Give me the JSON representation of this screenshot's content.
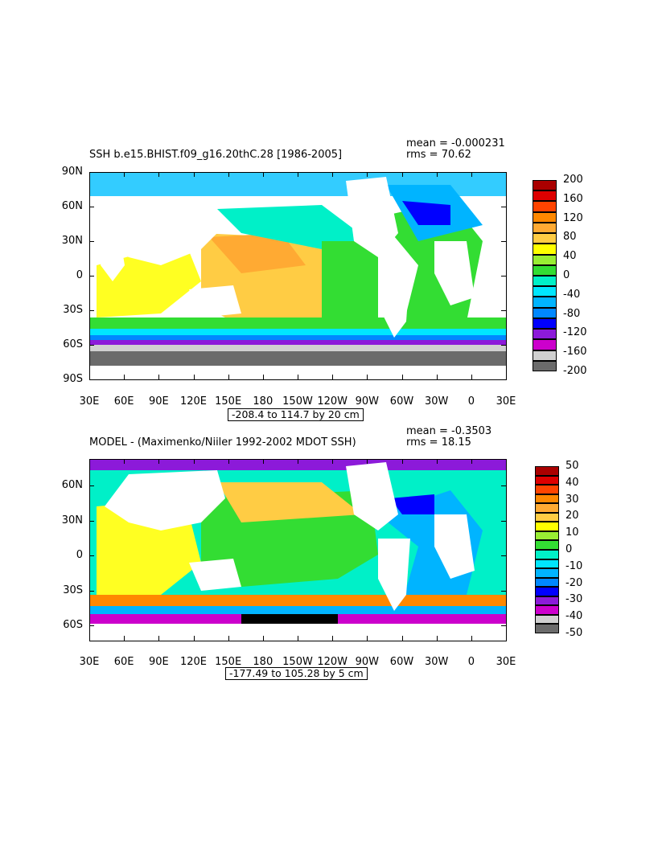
{
  "colors": {
    "bar1": [
      "#6b6b6b",
      "#d0d0d0",
      "#cc00cc",
      "#8c1ad9",
      "#0000ff",
      "#0088ff",
      "#00b4ff",
      "#00e6ff",
      "#00f0c8",
      "#33dd33",
      "#99ee33",
      "#ffff00",
      "#ffcc44",
      "#ffaa33",
      "#ff8800",
      "#ff4400",
      "#dd0000",
      "#aa0000"
    ],
    "bar2": [
      "#6b6b6b",
      "#d0d0d0",
      "#cc00cc",
      "#8c1ad9",
      "#0000ff",
      "#0088ff",
      "#00b4ff",
      "#00e6ff",
      "#00f0c8",
      "#33dd33",
      "#99ee33",
      "#ffff00",
      "#ffcc44",
      "#ffaa33",
      "#ff8800",
      "#ff4400",
      "#dd0000",
      "#aa0000"
    ]
  },
  "chart_data": [
    {
      "type": "heatmap",
      "title": "SSH b.e15.BHIST.f09_g16.20thC.28 [1986-2005]",
      "stats": {
        "mean": "mean = -0.000231",
        "rms": "rms = 70.62"
      },
      "x_ticks": [
        "30E",
        "60E",
        "90E",
        "120E",
        "150E",
        "180",
        "150W",
        "120W",
        "90W",
        "60W",
        "30W",
        "0",
        "30E"
      ],
      "y_ticks": [
        "90N",
        "60N",
        "30N",
        "0",
        "30S",
        "60S",
        "90S"
      ],
      "ylim": [
        -90,
        90
      ],
      "xlim": [
        30,
        390
      ],
      "colorbar_labels": [
        "200",
        "160",
        "120",
        "80",
        "40",
        "0",
        "-40",
        "-80",
        "-120",
        "-160",
        "-200"
      ],
      "range_note": "-208.4 to 114.7 by 20 cm"
    },
    {
      "type": "heatmap",
      "title": "MODEL - (Maximenko/Niiler 1992-2002 MDOT SSH)",
      "stats": {
        "mean": "mean = -0.3503",
        "rms": "rms = 18.15"
      },
      "x_ticks": [
        "30E",
        "60E",
        "90E",
        "120E",
        "150E",
        "180",
        "150W",
        "120W",
        "90W",
        "60W",
        "30W",
        "0",
        "30E"
      ],
      "y_ticks": [
        "60N",
        "30N",
        "0",
        "30S",
        "60S"
      ],
      "ylim": [
        -73,
        83
      ],
      "xlim": [
        30,
        390
      ],
      "colorbar_labels": [
        "50",
        "40",
        "30",
        "20",
        "10",
        "0",
        "-10",
        "-20",
        "-30",
        "-40",
        "-50"
      ],
      "range_note": "-177.49 to 105.28 by 5 cm"
    }
  ]
}
